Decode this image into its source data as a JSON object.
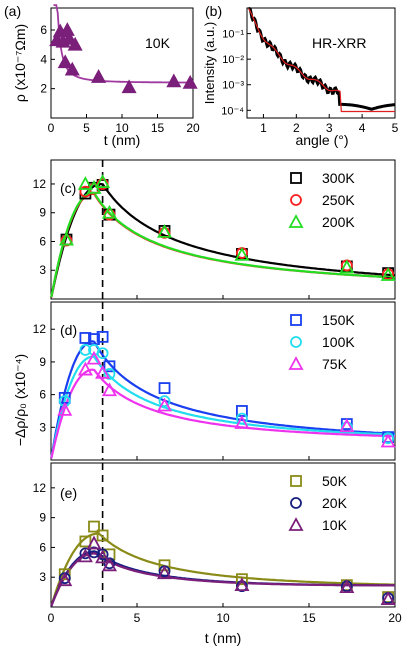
{
  "chart_data": [
    {
      "panel_label": "(a)",
      "type": "scatter",
      "annotation": "10K",
      "xlabel": "t (nm)",
      "ylabel": "ρ (x10⁻⁷Ωm)",
      "xlim": [
        0,
        20
      ],
      "ylim": [
        0,
        7.5
      ],
      "xticks": [
        0,
        5,
        10,
        15,
        20
      ],
      "yticks": [
        2,
        4,
        6
      ],
      "marker_color": "#7a1f7a",
      "fit_color": "#a03aa0",
      "points": [
        [
          0.8,
          5.3
        ],
        [
          1.3,
          5.9
        ],
        [
          1.7,
          5.2
        ],
        [
          2.0,
          3.8
        ],
        [
          2.3,
          6.0
        ],
        [
          2.6,
          5.4
        ],
        [
          3.0,
          3.3
        ],
        [
          3.4,
          5.0
        ],
        [
          6.7,
          2.8
        ],
        [
          11.0,
          2.1
        ],
        [
          17.3,
          2.5
        ],
        [
          19.6,
          2.4
        ]
      ],
      "fit": {
        "base": 2.4,
        "amp": 3.6,
        "ref": 1.1
      }
    },
    {
      "panel_label": "(b)",
      "type": "line",
      "annotation": "HR-XRR",
      "xlabel": "angle (°)",
      "ylabel": "Intensity (a.u.)",
      "xlim": [
        0.5,
        5
      ],
      "yscale": "log",
      "ylim": [
        5e-05,
        1
      ],
      "xticks": [
        1,
        2,
        3,
        4,
        5
      ],
      "yticks": [
        "10⁻¹",
        "10⁻²",
        "10⁻³",
        "10⁻⁴"
      ],
      "ytick_values": [
        0.1,
        0.01,
        0.001,
        0.0001
      ],
      "data_color": "#000000",
      "fit_color": "#e02020"
    },
    {
      "panel_label": "(c)",
      "type": "scatter",
      "xlim": [
        0,
        20
      ],
      "ylim": [
        0,
        14.5
      ],
      "yticks": [
        3,
        6,
        9,
        12
      ],
      "dashed_x": 3,
      "series": [
        {
          "name": "300K",
          "color": "#000000",
          "marker": "square",
          "points": [
            [
              0.9,
              6.2
            ],
            [
              2.0,
              11.0
            ],
            [
              2.5,
              11.6
            ],
            [
              3.0,
              11.9
            ],
            [
              3.4,
              8.8
            ],
            [
              6.6,
              7.1
            ],
            [
              11.1,
              4.7
            ],
            [
              17.2,
              3.4
            ],
            [
              19.6,
              2.7
            ]
          ],
          "fit": {
            "peak": 3.0,
            "height": 12.0,
            "tail": 3.3
          }
        },
        {
          "name": "250K",
          "color": "#ff2020",
          "marker": "circle",
          "points": [
            [
              0.9,
              6.1
            ],
            [
              2.0,
              11.2
            ],
            [
              2.5,
              11.5
            ],
            [
              3.0,
              12.0
            ],
            [
              3.4,
              8.8
            ],
            [
              6.6,
              6.9
            ],
            [
              11.1,
              4.8
            ],
            [
              17.2,
              3.5
            ],
            [
              19.6,
              2.6
            ]
          ],
          "fit": {
            "peak": 2.5,
            "height": 11.0,
            "tail": 3.0
          }
        },
        {
          "name": "200K",
          "color": "#22dd22",
          "marker": "triangle",
          "points": [
            [
              0.9,
              6.2
            ],
            [
              2.0,
              12.0
            ],
            [
              2.5,
              11.6
            ],
            [
              3.0,
              12.2
            ],
            [
              3.4,
              9.0
            ],
            [
              6.6,
              7.0
            ],
            [
              11.1,
              4.6
            ],
            [
              17.2,
              3.3
            ],
            [
              19.6,
              2.5
            ]
          ],
          "fit": {
            "peak": 2.5,
            "height": 11.1,
            "tail": 3.0
          }
        }
      ]
    },
    {
      "panel_label": "(d)",
      "type": "scatter",
      "xlim": [
        0,
        20
      ],
      "ylim": [
        0,
        14.5
      ],
      "yticks": [
        3,
        6,
        9,
        12
      ],
      "dashed_x": 3,
      "ylabel": "−Δρ/ρ₀ (x10⁻⁴)",
      "series": [
        {
          "name": "150K",
          "color": "#1a3ff0",
          "marker": "square",
          "points": [
            [
              0.8,
              5.7
            ],
            [
              2.0,
              11.2
            ],
            [
              2.5,
              11.1
            ],
            [
              3.0,
              11.3
            ],
            [
              3.4,
              8.6
            ],
            [
              6.6,
              6.6
            ],
            [
              11.1,
              4.5
            ],
            [
              17.2,
              3.3
            ],
            [
              19.6,
              2.1
            ]
          ],
          "fit": {
            "peak": 2.5,
            "height": 10.9,
            "tail": 3.2
          }
        },
        {
          "name": "100K",
          "color": "#22ddee",
          "marker": "circle",
          "points": [
            [
              0.8,
              5.4
            ],
            [
              2.0,
              10.1
            ],
            [
              2.5,
              10.1
            ],
            [
              3.0,
              9.8
            ],
            [
              3.4,
              7.9
            ],
            [
              6.6,
              5.4
            ],
            [
              11.1,
              3.8
            ],
            [
              17.2,
              3.0
            ],
            [
              19.6,
              2.0
            ]
          ],
          "fit": {
            "peak": 2.5,
            "height": 9.5,
            "tail": 3.1
          }
        },
        {
          "name": "75K",
          "color": "#ee33ee",
          "marker": "triangle",
          "points": [
            [
              0.8,
              4.6
            ],
            [
              2.0,
              8.3
            ],
            [
              2.5,
              9.3
            ],
            [
              3.0,
              8.0
            ],
            [
              3.4,
              6.4
            ],
            [
              6.6,
              5.0
            ],
            [
              11.1,
              3.4
            ],
            [
              17.2,
              3.1
            ],
            [
              19.6,
              1.7
            ]
          ],
          "fit": {
            "peak": 2.5,
            "height": 8.3,
            "tail": 2.9
          }
        }
      ]
    },
    {
      "panel_label": "(e)",
      "type": "scatter",
      "xlim": [
        0,
        20
      ],
      "ylim": [
        0,
        14.5
      ],
      "xticks": [
        0,
        5,
        10,
        15,
        20
      ],
      "yticks": [
        3,
        6,
        9,
        12
      ],
      "dashed_x": 3,
      "xlabel": "t (nm)",
      "series": [
        {
          "name": "50K",
          "color": "#8a8a18",
          "marker": "square",
          "points": [
            [
              0.8,
              3.3
            ],
            [
              2.0,
              6.6
            ],
            [
              2.5,
              8.1
            ],
            [
              3.0,
              7.2
            ],
            [
              3.4,
              5.3
            ],
            [
              6.6,
              4.2
            ],
            [
              11.1,
              2.8
            ],
            [
              17.2,
              2.2
            ],
            [
              19.6,
              1.0
            ]
          ],
          "fit": {
            "peak": 2.8,
            "height": 7.4,
            "tail": 3.0
          }
        },
        {
          "name": "20K",
          "color": "#161e80",
          "marker": "circle",
          "points": [
            [
              0.8,
              2.9
            ],
            [
              2.0,
              5.4
            ],
            [
              2.5,
              5.5
            ],
            [
              3.0,
              5.3
            ],
            [
              3.4,
              4.4
            ],
            [
              6.6,
              3.6
            ],
            [
              11.1,
              2.1
            ],
            [
              17.2,
              2.1
            ],
            [
              19.6,
              0.9
            ]
          ],
          "fit": {
            "peak": 2.6,
            "height": 5.6,
            "tail": 2.9
          }
        },
        {
          "name": "10K",
          "color": "#7a1f7a",
          "marker": "triangle",
          "points": [
            [
              0.8,
              2.7
            ],
            [
              2.0,
              5.1
            ],
            [
              2.5,
              6.4
            ],
            [
              3.0,
              5.0
            ],
            [
              3.4,
              4.2
            ],
            [
              6.6,
              3.4
            ],
            [
              11.1,
              2.2
            ],
            [
              17.2,
              2.0
            ],
            [
              19.6,
              0.8
            ]
          ],
          "fit": {
            "peak": 2.6,
            "height": 5.4,
            "tail": 2.9
          }
        }
      ]
    }
  ]
}
